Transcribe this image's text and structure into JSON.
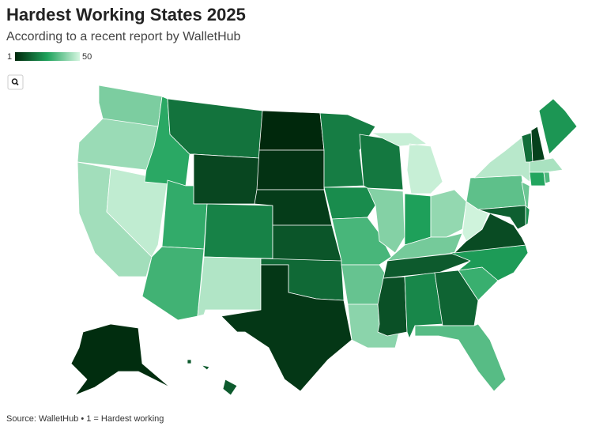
{
  "chart_data": {
    "type": "choropleth",
    "title": "Hardest Working States 2025",
    "subtitle": "According to a recent report by WalletHub",
    "legend_min": 1,
    "legend_max": 50,
    "color_scale": [
      "#00280c",
      "#1fa35c",
      "#d6f6e1"
    ],
    "source": "Source: WalletHub • 1 = Hardest working",
    "values": [
      38,
      42,
      43,
      47,
      27,
      16,
      7,
      28,
      30,
      19,
      45,
      1,
      3,
      5,
      10,
      14,
      4,
      18,
      21,
      31,
      35,
      40,
      17,
      39,
      48,
      25,
      41,
      37,
      11,
      9,
      20,
      13,
      33,
      29,
      24,
      8,
      49,
      34,
      46,
      36,
      12,
      22,
      15,
      6,
      23,
      44,
      26,
      32,
      2,
      11
    ]
  }
}
